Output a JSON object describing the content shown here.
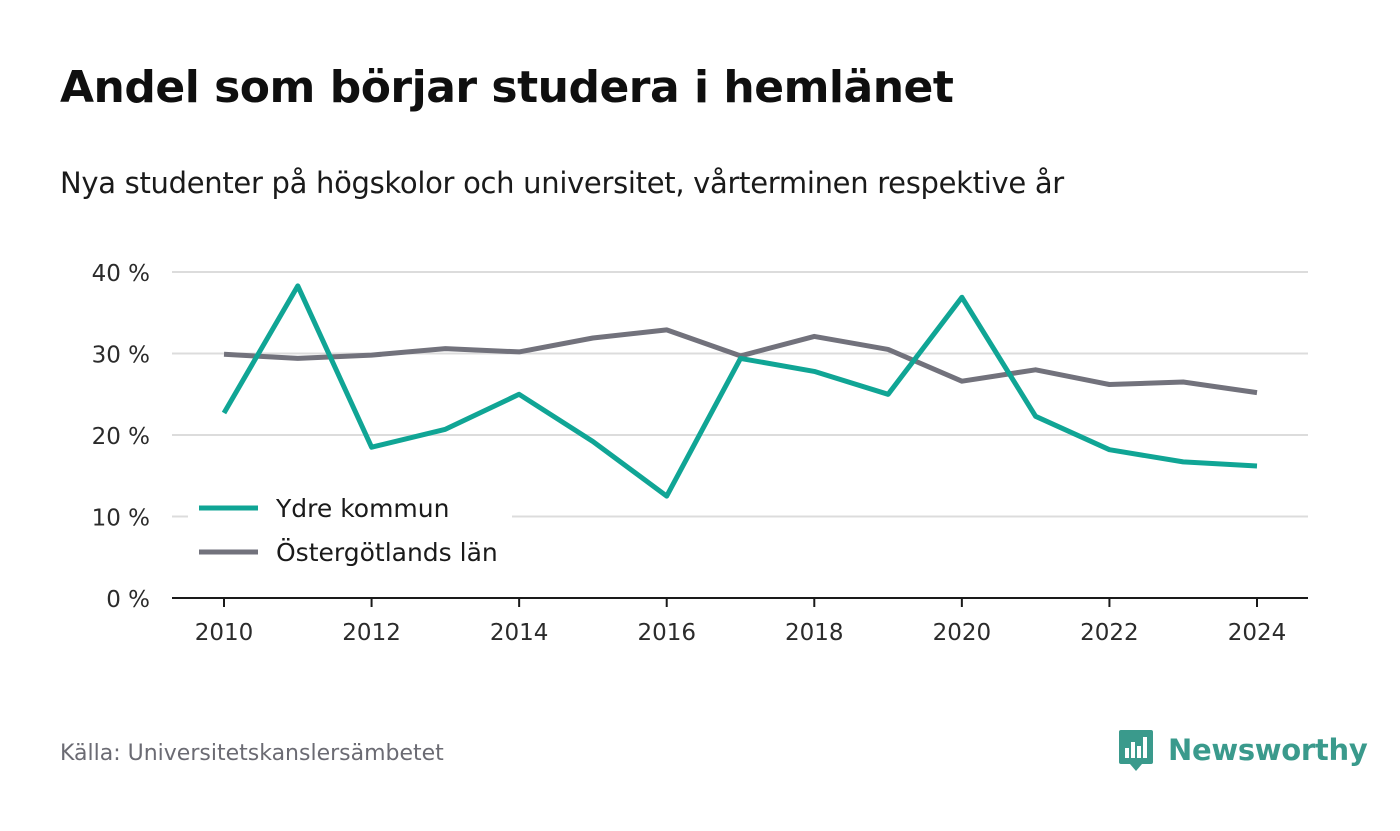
{
  "title": "Andel som börjar studera i hemlänet",
  "subtitle": "Nya studenter på högskolor och universitet, vårterminen respektive år",
  "source": "Källa: Universitetskanslersämbetet",
  "brand": {
    "name": "Newsworthy",
    "icon": "newsworthy-logo-icon",
    "color": "#3a9a8c"
  },
  "chart_data": {
    "type": "line",
    "x": [
      2010,
      2011,
      2012,
      2013,
      2014,
      2015,
      2016,
      2017,
      2018,
      2019,
      2020,
      2021,
      2022,
      2023,
      2024
    ],
    "x_ticks": [
      "2010",
      "2012",
      "2014",
      "2016",
      "2018",
      "2020",
      "2022",
      "2024"
    ],
    "y_ticks": [
      "0 %",
      "10 %",
      "20 %",
      "30 %",
      "40 %"
    ],
    "ylim": [
      0,
      40
    ],
    "grid": true,
    "legend_position": "bottom-left",
    "series": [
      {
        "name": "Ydre kommun",
        "color": "#10a595",
        "values": [
          22.7,
          38.3,
          18.5,
          20.7,
          25.0,
          19.2,
          12.5,
          29.4,
          27.8,
          25.0,
          36.9,
          22.3,
          18.2,
          16.7,
          16.2
        ]
      },
      {
        "name": "Östergötlands län",
        "color": "#72727c",
        "values": [
          29.9,
          29.4,
          29.8,
          30.6,
          30.2,
          31.9,
          32.9,
          29.7,
          32.1,
          30.5,
          26.6,
          28.0,
          26.2,
          26.5,
          25.2
        ]
      }
    ]
  }
}
